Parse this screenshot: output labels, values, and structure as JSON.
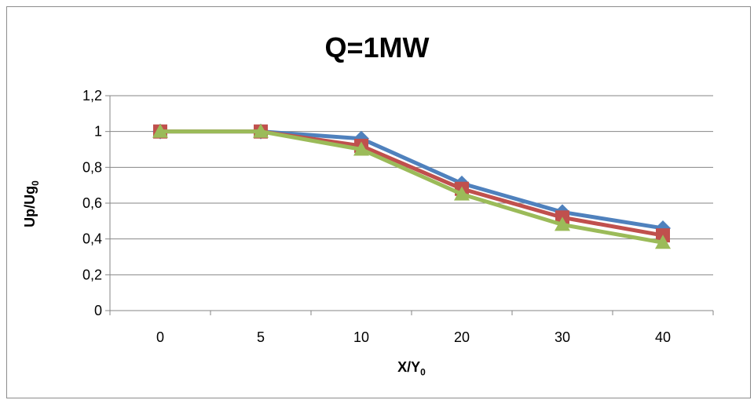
{
  "chart_data": {
    "type": "line",
    "title": "Q=1MW",
    "ylabel": {
      "main": "Up/Ug",
      "sub": "0"
    },
    "xlabel": {
      "main": "X/Y",
      "sub": "0"
    },
    "categories": [
      "0",
      "5",
      "10",
      "20",
      "30",
      "40"
    ],
    "ylim": [
      0,
      1.2
    ],
    "yticks": [
      "0",
      "0,2",
      "0,4",
      "0,6",
      "0,8",
      "1",
      "1,2"
    ],
    "grid": true,
    "legend": "none",
    "series": [
      {
        "color": "#4f81bd",
        "marker": "diamond",
        "values": [
          1,
          1,
          0.96,
          0.71,
          0.55,
          0.46
        ]
      },
      {
        "color": "#c0504d",
        "marker": "square",
        "values": [
          1,
          1,
          0.92,
          0.68,
          0.52,
          0.42
        ]
      },
      {
        "color": "#9bbb59",
        "marker": "triangle",
        "values": [
          1,
          1,
          0.9,
          0.65,
          0.48,
          0.38
        ]
      }
    ]
  }
}
